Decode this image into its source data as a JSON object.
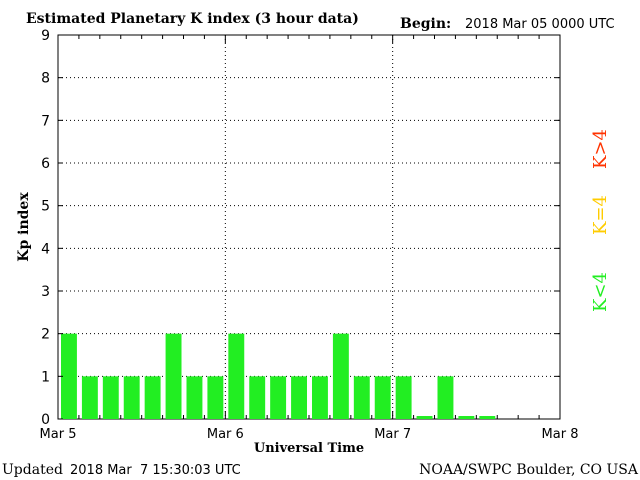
{
  "header": {
    "title": "Estimated Planetary K index (3 hour data)",
    "begin_label": "Begin:",
    "begin_value": "2018 Mar 05 0000 UTC"
  },
  "footer": {
    "updated_label": "Updated",
    "updated_value": "2018 Mar  7 15:30:03 UTC",
    "source": "NOAA/SWPC Boulder, CO USA"
  },
  "legend": {
    "k_gt4": "K>4",
    "k_eq4": "K=4",
    "k_lt4": "K<4"
  },
  "colors": {
    "k_lt4": "#22ee22",
    "k_eq4": "#ffcc00",
    "k_gt4": "#ff3300"
  },
  "chart_data": {
    "type": "bar",
    "xlabel": "Universal Time",
    "ylabel": "Kp index",
    "ylim": [
      0,
      9
    ],
    "yticks": [
      0,
      1,
      2,
      3,
      4,
      5,
      6,
      7,
      8,
      9
    ],
    "xticks": [
      "Mar 5",
      "Mar 6",
      "Mar 7",
      "Mar 8"
    ],
    "grid": true,
    "interval_hours": 3,
    "values": [
      2,
      1,
      1,
      1,
      1,
      2,
      1,
      1,
      2,
      1,
      1,
      1,
      1,
      2,
      1,
      1,
      1,
      0.07,
      1,
      0.07,
      0.07
    ]
  }
}
